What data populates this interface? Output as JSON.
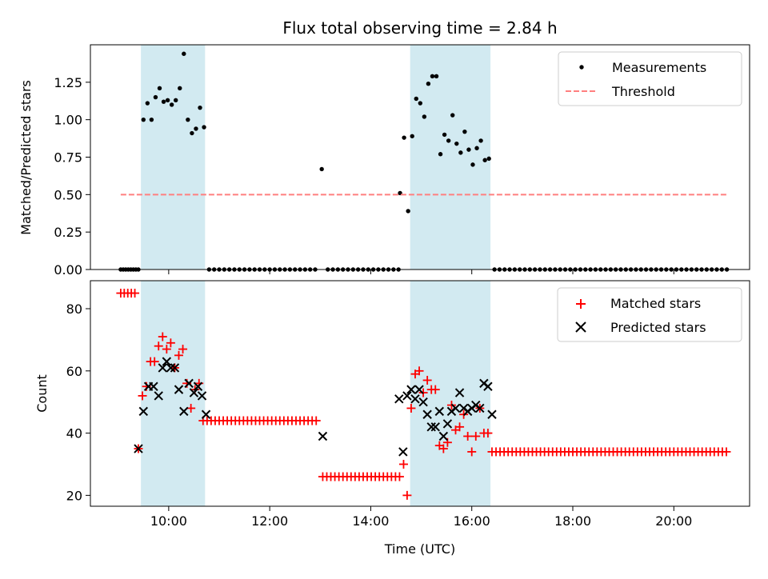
{
  "chart_data": {
    "title": "Flux total observing time = 2.84 h",
    "x_unit": "hours UTC",
    "xlabel": "Time (UTC)",
    "xlim": [
      8.45,
      21.5
    ],
    "xticks": [
      10,
      12,
      14,
      16,
      18,
      20
    ],
    "xtick_labels": [
      "10:00",
      "12:00",
      "14:00",
      "16:00",
      "18:00",
      "20:00"
    ],
    "shaded_intervals": [
      [
        9.45,
        10.72
      ],
      [
        14.78,
        16.37
      ]
    ],
    "shade_color": "#add8e6",
    "panels": [
      {
        "type": "scatter",
        "ylabel": "Matched/Predicted stars",
        "ylim": [
          0,
          1.5
        ],
        "yticks": [
          0,
          0.25,
          0.5,
          0.75,
          1.0,
          1.25
        ],
        "ytick_labels": [
          "0.00",
          "0.25",
          "0.50",
          "0.75",
          "1.00",
          "1.25"
        ],
        "legend_position": "top-right",
        "series": [
          {
            "name": "Measurements",
            "marker": "dot",
            "color": "#000000",
            "x": [
              9.05,
              9.1,
              9.15,
              9.2,
              9.25,
              9.3,
              9.35,
              9.4,
              9.5,
              9.58,
              9.66,
              9.74,
              9.82,
              9.9,
              9.98,
              10.06,
              10.14,
              10.22,
              10.3,
              10.38,
              10.46,
              10.54,
              10.62,
              10.7,
              10.8,
              10.9,
              11.0,
              11.1,
              11.2,
              11.3,
              11.4,
              11.5,
              11.6,
              11.7,
              11.8,
              11.9,
              12.0,
              12.1,
              12.2,
              12.3,
              12.4,
              12.5,
              12.6,
              12.7,
              12.8,
              12.9,
              13.03,
              13.15,
              13.25,
              13.35,
              13.45,
              13.55,
              13.65,
              13.75,
              13.85,
              13.95,
              14.05,
              14.15,
              14.25,
              14.35,
              14.45,
              14.55,
              14.58,
              14.66,
              14.74,
              14.82,
              14.9,
              14.98,
              15.06,
              15.14,
              15.22,
              15.3,
              15.38,
              15.46,
              15.54,
              15.62,
              15.7,
              15.78,
              15.86,
              15.94,
              16.02,
              16.1,
              16.18,
              16.26,
              16.34,
              16.45,
              16.55,
              16.65,
              16.75,
              16.85,
              16.95,
              17.05,
              17.15,
              17.25,
              17.35,
              17.45,
              17.55,
              17.65,
              17.75,
              17.85,
              17.95,
              18.05,
              18.15,
              18.25,
              18.35,
              18.45,
              18.55,
              18.65,
              18.75,
              18.85,
              18.95,
              19.05,
              19.15,
              19.25,
              19.35,
              19.45,
              19.55,
              19.65,
              19.75,
              19.85,
              19.95,
              20.05,
              20.15,
              20.25,
              20.35,
              20.45,
              20.55,
              20.65,
              20.75,
              20.85,
              20.95,
              21.05
            ],
            "y": [
              0,
              0,
              0,
              0,
              0,
              0,
              0,
              0,
              1.0,
              1.11,
              1.0,
              1.15,
              1.21,
              1.12,
              1.13,
              1.1,
              1.13,
              1.21,
              1.44,
              1.0,
              0.91,
              0.94,
              1.08,
              0.95,
              0,
              0,
              0,
              0,
              0,
              0,
              0,
              0,
              0,
              0,
              0,
              0,
              0,
              0,
              0,
              0,
              0,
              0,
              0,
              0,
              0,
              0,
              0.67,
              0,
              0,
              0,
              0,
              0,
              0,
              0,
              0,
              0,
              0,
              0,
              0,
              0,
              0,
              0,
              0.51,
              0.88,
              0.39,
              0.89,
              1.14,
              1.11,
              1.02,
              1.24,
              1.29,
              1.29,
              0.77,
              0.9,
              0.86,
              1.03,
              0.84,
              0.78,
              0.92,
              0.8,
              0.7,
              0.81,
              0.86,
              0.73,
              0.74,
              0,
              0,
              0,
              0,
              0,
              0,
              0,
              0,
              0,
              0,
              0,
              0,
              0,
              0,
              0,
              0,
              0,
              0,
              0,
              0,
              0,
              0,
              0,
              0,
              0,
              0,
              0,
              0,
              0,
              0,
              0,
              0,
              0,
              0,
              0,
              0,
              0,
              0,
              0,
              0,
              0,
              0,
              0,
              0,
              0,
              0,
              0
            ]
          },
          {
            "name": "Threshold",
            "type": "line",
            "style": "dashed",
            "color": "#ff7f7f",
            "x": [
              9.05,
              21.05
            ],
            "y": [
              0.5,
              0.5
            ]
          }
        ]
      },
      {
        "type": "scatter",
        "ylabel": "Count",
        "ylim": [
          16.5,
          89
        ],
        "yticks": [
          20,
          40,
          60,
          80
        ],
        "ytick_labels": [
          "20",
          "40",
          "60",
          "80"
        ],
        "legend_position": "top-right",
        "series": [
          {
            "name": "Matched stars",
            "marker": "plus",
            "color": "#ff0000",
            "x": [
              9.05,
              9.12,
              9.19,
              9.26,
              9.33,
              9.4,
              9.48,
              9.56,
              9.64,
              9.72,
              9.8,
              9.88,
              9.96,
              10.04,
              10.12,
              10.2,
              10.28,
              10.36,
              10.44,
              10.52,
              10.6,
              10.68,
              10.76,
              10.84,
              10.92,
              11.0,
              11.08,
              11.16,
              11.24,
              11.32,
              11.4,
              11.48,
              11.56,
              11.64,
              11.72,
              11.8,
              11.88,
              11.96,
              12.04,
              12.12,
              12.2,
              12.28,
              12.36,
              12.44,
              12.52,
              12.6,
              12.68,
              12.76,
              12.84,
              12.92,
              13.05,
              13.13,
              13.21,
              13.29,
              13.37,
              13.45,
              13.53,
              13.61,
              13.69,
              13.77,
              13.85,
              13.93,
              14.01,
              14.09,
              14.17,
              14.25,
              14.33,
              14.41,
              14.49,
              14.57,
              14.65,
              14.72,
              14.8,
              14.88,
              14.96,
              15.04,
              15.12,
              15.2,
              15.28,
              15.36,
              15.44,
              15.52,
              15.6,
              15.68,
              15.76,
              15.84,
              15.92,
              16.0,
              16.08,
              16.16,
              16.24,
              16.32,
              16.4,
              16.48,
              16.56,
              16.64,
              16.72,
              16.8,
              16.88,
              16.96,
              17.04,
              17.12,
              17.2,
              17.28,
              17.36,
              17.44,
              17.52,
              17.6,
              17.68,
              17.76,
              17.84,
              17.92,
              18.0,
              18.08,
              18.16,
              18.24,
              18.32,
              18.4,
              18.48,
              18.56,
              18.64,
              18.72,
              18.8,
              18.88,
              18.96,
              19.04,
              19.12,
              19.2,
              19.28,
              19.36,
              19.44,
              19.52,
              19.6,
              19.68,
              19.76,
              19.84,
              19.92,
              20.0,
              20.08,
              20.16,
              20.24,
              20.32,
              20.4,
              20.48,
              20.56,
              20.64,
              20.72,
              20.8,
              20.88,
              20.96,
              21.04
            ],
            "y": [
              85,
              85,
              85,
              85,
              85,
              35,
              52,
              55,
              63,
              63,
              68,
              71,
              67,
              69,
              61,
              65,
              67,
              56,
              48,
              54,
              56,
              44,
              44,
              44,
              44,
              44,
              44,
              44,
              44,
              44,
              44,
              44,
              44,
              44,
              44,
              44,
              44,
              44,
              44,
              44,
              44,
              44,
              44,
              44,
              44,
              44,
              44,
              44,
              44,
              44,
              26,
              26,
              26,
              26,
              26,
              26,
              26,
              26,
              26,
              26,
              26,
              26,
              26,
              26,
              26,
              26,
              26,
              26,
              26,
              26,
              30,
              20,
              48,
              59,
              60,
              53,
              57,
              54,
              54,
              36,
              35,
              37,
              49,
              41,
              42,
              46,
              39,
              34,
              39,
              48,
              40,
              40,
              34,
              34,
              34,
              34,
              34,
              34,
              34,
              34,
              34,
              34,
              34,
              34,
              34,
              34,
              34,
              34,
              34,
              34,
              34,
              34,
              34,
              34,
              34,
              34,
              34,
              34,
              34,
              34,
              34,
              34,
              34,
              34,
              34,
              34,
              34,
              34,
              34,
              34,
              34,
              34,
              34,
              34,
              34,
              34,
              34,
              34,
              34,
              34,
              34,
              34,
              34,
              34,
              34,
              34,
              34,
              34,
              34,
              34,
              34
            ]
          },
          {
            "name": "Predicted stars",
            "marker": "x",
            "color": "#000000",
            "x": [
              9.4,
              9.5,
              9.6,
              9.7,
              9.8,
              9.88,
              9.96,
              10.04,
              10.12,
              10.2,
              10.3,
              10.4,
              10.5,
              10.58,
              10.66,
              10.74,
              13.05,
              14.56,
              14.64,
              14.72,
              14.8,
              14.88,
              14.96,
              15.04,
              15.12,
              15.2,
              15.28,
              15.36,
              15.44,
              15.52,
              15.6,
              15.68,
              15.76,
              15.84,
              15.92,
              16.0,
              16.08,
              16.16,
              16.24,
              16.32,
              16.4
            ],
            "y": [
              35,
              47,
              55,
              55,
              52,
              61,
              63,
              61,
              61,
              54,
              47,
              56,
              53,
              55,
              52,
              46,
              39,
              51,
              34,
              52,
              54,
              51,
              54,
              50,
              46,
              42,
              42,
              47,
              39,
              43,
              47,
              48,
              53,
              48,
              47,
              48,
              49,
              48,
              56,
              55,
              46
            ]
          }
        ]
      }
    ]
  }
}
